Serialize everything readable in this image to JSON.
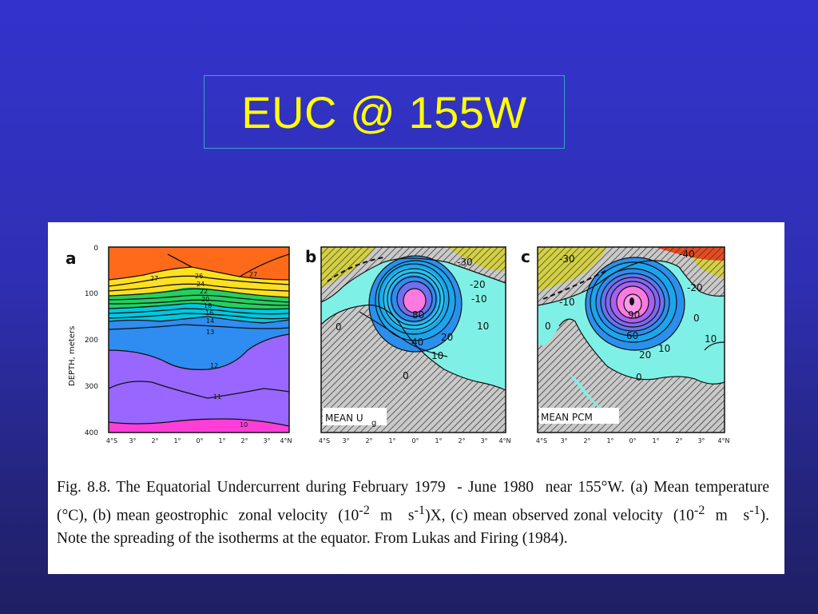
{
  "slide": {
    "title": "EUC @ 155W",
    "colors": {
      "background": "#3333cc",
      "title": "#ffff00",
      "title_border": "#3aa2c8"
    }
  },
  "figure": {
    "panel_a": {
      "letter": "a",
      "y_axis_label": "DEPTH, meters",
      "y_ticks": [
        "0",
        "100",
        "200",
        "300",
        "400"
      ],
      "x_ticks": [
        "4°S",
        "3°",
        "2°",
        "1°",
        "0°",
        "1°",
        "2°",
        "3°",
        "4°N"
      ],
      "contour_labels": [
        "27",
        "27",
        "26",
        "24",
        "22",
        "20",
        "18",
        "16",
        "14",
        "13",
        "12",
        "11",
        "10"
      ]
    },
    "panel_b": {
      "letter": "b",
      "label_main": "MEAN U",
      "label_sub": "g",
      "x_ticks": [
        "4°S",
        "3°",
        "2°",
        "1°",
        "0°",
        "1°",
        "2°",
        "3°",
        "4°N"
      ],
      "contour_labels": [
        "-30",
        "-20",
        "-10",
        "0",
        "80",
        "40",
        "20",
        "10",
        "10",
        "0"
      ]
    },
    "panel_c": {
      "letter": "c",
      "label": "MEAN PCM",
      "x_ticks": [
        "4°S",
        "3°",
        "2°",
        "1°",
        "0°",
        "1°",
        "2°",
        "3°",
        "4°N"
      ],
      "contour_labels": [
        "-30",
        "-40",
        "-20",
        "-10",
        "0",
        "90",
        "60",
        "20",
        "10",
        "10",
        "0",
        "0"
      ]
    },
    "caption": {
      "p1": "Fig. 8.8. The Equatorial Undercurrent during February 1979  - June 1980  near 155°W. (a) Mean temperature (°C), (b) mean geostrophic  zonal velocity  (10",
      "sup1": "-2",
      "p2": "  m   s",
      "sup2": "-1",
      "p3": ")X, (c) mean observed zonal velocity  (10",
      "sup3": "-2",
      "p4": "  m   s",
      "sup4": "-1",
      "p5": "). Note the spreading of the isotherms at the equator. From Lukas and Firing (1984)."
    }
  }
}
